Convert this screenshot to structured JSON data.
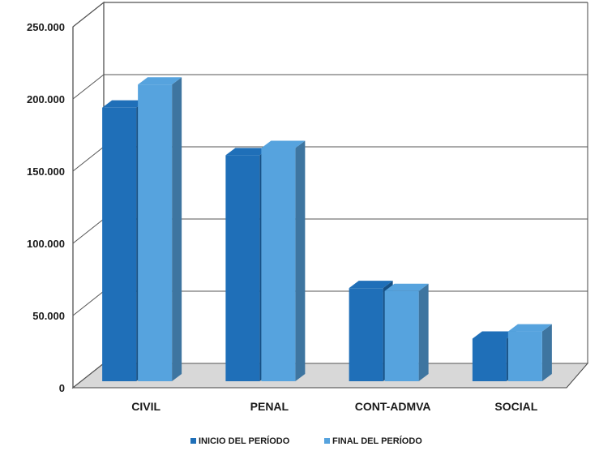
{
  "chart_data": {
    "type": "bar",
    "title": "",
    "xlabel": "",
    "ylabel": "",
    "categories": [
      "CIVIL",
      "PENAL",
      "CONT-ADMVA",
      "SOCIAL"
    ],
    "series": [
      {
        "name": "INICIO DEL PERÍODO",
        "color": "#1F6FB8",
        "values": [
          194000,
          161000,
          69000,
          34000
        ]
      },
      {
        "name": "FINAL DEL PERÍODO",
        "color": "#56A3DE",
        "values": [
          210000,
          166000,
          67000,
          39000
        ]
      }
    ],
    "yticks": [
      "0",
      "50.000",
      "100.000",
      "150.000",
      "200.000",
      "250.000"
    ],
    "ylim": [
      0,
      250000
    ],
    "grid": true,
    "legend_position": "bottom"
  }
}
